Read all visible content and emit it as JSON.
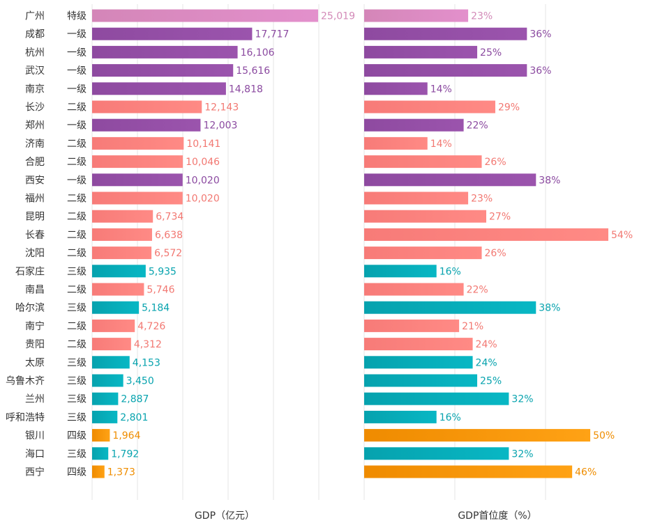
{
  "chart_data": {
    "type": "bar",
    "orientation": "horizontal",
    "xlabel_left": "GDP（亿元）",
    "xlabel_right": "GDP首位度（%）",
    "grid": true,
    "tier_colors": {
      "特级": [
        "#d486b8",
        "#e390cc"
      ],
      "一级": [
        "#8e4aa0",
        "#9b54ad"
      ],
      "二级": [
        "#f77b78",
        "#ff8a85"
      ],
      "三级": [
        "#06a2ae",
        "#08b7c4"
      ],
      "四级": [
        "#ef8b00",
        "#ffa215"
      ]
    },
    "label_colors": {
      "特级": "#d38ab8",
      "一级": "#8b4aa0",
      "二级": "#f27872",
      "三级": "#07a3ae",
      "四级": "#ef8d00"
    },
    "cities": [
      {
        "city": "广州",
        "tier": "特级",
        "gdp": 25019,
        "gdp_label": "25,019",
        "primacy": 23,
        "primacy_label": "23%"
      },
      {
        "city": "成都",
        "tier": "一级",
        "gdp": 17717,
        "gdp_label": "17,717",
        "primacy": 36,
        "primacy_label": "36%"
      },
      {
        "city": "杭州",
        "tier": "一级",
        "gdp": 16106,
        "gdp_label": "16,106",
        "primacy": 25,
        "primacy_label": "25%"
      },
      {
        "city": "武汉",
        "tier": "一级",
        "gdp": 15616,
        "gdp_label": "15,616",
        "primacy": 36,
        "primacy_label": "36%"
      },
      {
        "city": "南京",
        "tier": "一级",
        "gdp": 14818,
        "gdp_label": "14,818",
        "primacy": 14,
        "primacy_label": "14%"
      },
      {
        "city": "长沙",
        "tier": "二级",
        "gdp": 12143,
        "gdp_label": "12,143",
        "primacy": 29,
        "primacy_label": "29%"
      },
      {
        "city": "郑州",
        "tier": "一级",
        "gdp": 12003,
        "gdp_label": "12,003",
        "primacy": 22,
        "primacy_label": "22%"
      },
      {
        "city": "济南",
        "tier": "二级",
        "gdp": 10141,
        "gdp_label": "10,141",
        "primacy": 14,
        "primacy_label": "14%"
      },
      {
        "city": "合肥",
        "tier": "二级",
        "gdp": 10046,
        "gdp_label": "10,046",
        "primacy": 26,
        "primacy_label": "26%"
      },
      {
        "city": "西安",
        "tier": "一级",
        "gdp": 10020,
        "gdp_label": "10,020",
        "primacy": 38,
        "primacy_label": "38%"
      },
      {
        "city": "福州",
        "tier": "二级",
        "gdp": 10020,
        "gdp_label": "10,020",
        "primacy": 23,
        "primacy_label": "23%"
      },
      {
        "city": "昆明",
        "tier": "二级",
        "gdp": 6734,
        "gdp_label": "6,734",
        "primacy": 27,
        "primacy_label": "27%"
      },
      {
        "city": "长春",
        "tier": "二级",
        "gdp": 6638,
        "gdp_label": "6,638",
        "primacy": 54,
        "primacy_label": "54%"
      },
      {
        "city": "沈阳",
        "tier": "二级",
        "gdp": 6572,
        "gdp_label": "6,572",
        "primacy": 26,
        "primacy_label": "26%"
      },
      {
        "city": "石家庄",
        "tier": "三级",
        "gdp": 5935,
        "gdp_label": "5,935",
        "primacy": 16,
        "primacy_label": "16%"
      },
      {
        "city": "南昌",
        "tier": "二级",
        "gdp": 5746,
        "gdp_label": "5,746",
        "primacy": 22,
        "primacy_label": "22%"
      },
      {
        "city": "哈尔滨",
        "tier": "三级",
        "gdp": 5184,
        "gdp_label": "5,184",
        "primacy": 38,
        "primacy_label": "38%"
      },
      {
        "city": "南宁",
        "tier": "二级",
        "gdp": 4726,
        "gdp_label": "4,726",
        "primacy": 21,
        "primacy_label": "21%"
      },
      {
        "city": "贵阳",
        "tier": "二级",
        "gdp": 4312,
        "gdp_label": "4,312",
        "primacy": 24,
        "primacy_label": "24%"
      },
      {
        "city": "太原",
        "tier": "三级",
        "gdp": 4153,
        "gdp_label": "4,153",
        "primacy": 24,
        "primacy_label": "24%"
      },
      {
        "city": "乌鲁木齐",
        "tier": "三级",
        "gdp": 3450,
        "gdp_label": "3,450",
        "primacy": 25,
        "primacy_label": "25%"
      },
      {
        "city": "兰州",
        "tier": "三级",
        "gdp": 2887,
        "gdp_label": "2,887",
        "primacy": 32,
        "primacy_label": "32%"
      },
      {
        "city": "呼和浩特",
        "tier": "三级",
        "gdp": 2801,
        "gdp_label": "2,801",
        "primacy": 16,
        "primacy_label": "16%"
      },
      {
        "city": "银川",
        "tier": "四级",
        "gdp": 1964,
        "gdp_label": "1,964",
        "primacy": 50,
        "primacy_label": "50%"
      },
      {
        "city": "海口",
        "tier": "三级",
        "gdp": 1792,
        "gdp_label": "1,792",
        "primacy": 32,
        "primacy_label": "32%"
      },
      {
        "city": "西宁",
        "tier": "四级",
        "gdp": 1373,
        "gdp_label": "1,373",
        "primacy": 46,
        "primacy_label": "46%"
      }
    ]
  }
}
